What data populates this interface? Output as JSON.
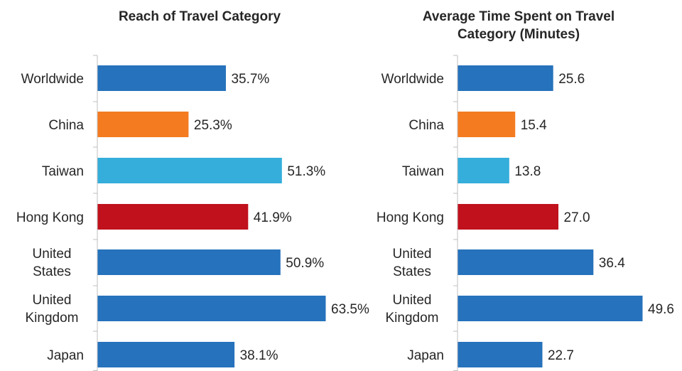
{
  "chart_data": [
    {
      "type": "bar",
      "orientation": "horizontal",
      "title": "Reach of Travel Category",
      "categories": [
        "Worldwide",
        "China",
        "Taiwan",
        "Hong Kong",
        "United States",
        "United Kingdom",
        "Japan"
      ],
      "values": [
        35.7,
        25.3,
        51.3,
        41.9,
        50.9,
        63.5,
        38.1
      ],
      "value_labels": [
        "35.7%",
        "25.3%",
        "51.3%",
        "41.9%",
        "50.9%",
        "63.5%",
        "38.1%"
      ],
      "colors": [
        "#2672BC",
        "#F47B20",
        "#35AEDB",
        "#C0111D",
        "#2672BC",
        "#2672BC",
        "#2672BC"
      ],
      "xlim": [
        0,
        70
      ],
      "grid": false,
      "legend": "none"
    },
    {
      "type": "bar",
      "orientation": "horizontal",
      "title": "Average Time Spent on Travel Category (Minutes)",
      "categories": [
        "Worldwide",
        "China",
        "Taiwan",
        "Hong Kong",
        "United States",
        "United Kingdom",
        "Japan"
      ],
      "values": [
        25.6,
        15.4,
        13.8,
        27.0,
        36.4,
        49.6,
        22.7
      ],
      "value_labels": [
        "25.6",
        "15.4",
        "13.8",
        "27.0",
        "36.4",
        "49.6",
        "22.7"
      ],
      "colors": [
        "#2672BC",
        "#F47B20",
        "#35AEDB",
        "#C0111D",
        "#2672BC",
        "#2672BC",
        "#2672BC"
      ],
      "xlim": [
        0,
        52
      ],
      "grid": false,
      "legend": "none"
    }
  ]
}
